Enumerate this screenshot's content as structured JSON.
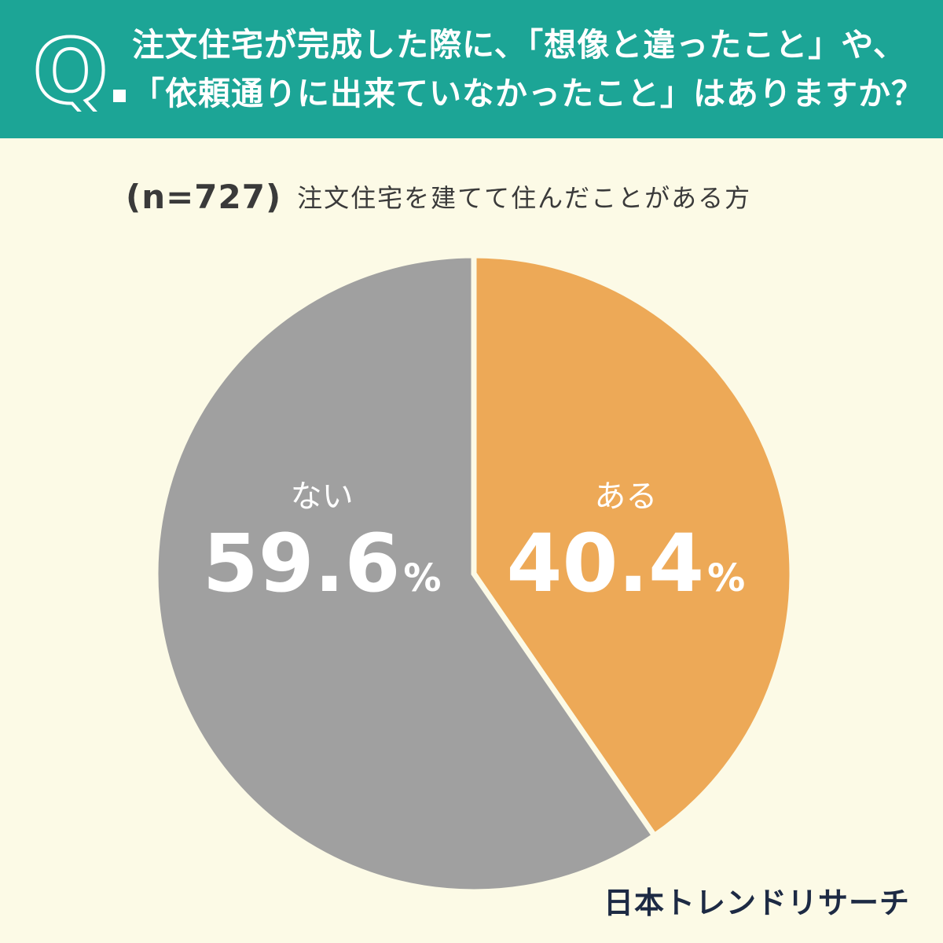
{
  "header": {
    "q_letter": "Q",
    "question_line1": "注文住宅が完成した際に、「想像と違ったこと」や、",
    "question_line2": "「依頼通りに出来ていなかったこと」はありますか？",
    "background_color": "#1ca596"
  },
  "sample": {
    "n_label": "(n=727)",
    "description": "注文住宅を建てて住んだことがある方"
  },
  "chart_data": {
    "type": "pie",
    "start_angle": "12 o'clock",
    "direction": "clockwise",
    "slices": [
      {
        "label": "ある",
        "value": 40.4,
        "value_text": "40.4",
        "unit": "%",
        "color": "#eda957"
      },
      {
        "label": "ない",
        "value": 59.6,
        "value_text": "59.6",
        "unit": "%",
        "color": "#a0a0a0"
      }
    ],
    "separator_color": "#fcfae6",
    "label_color": "#ffffff"
  },
  "brand": {
    "name": "日本トレンドリサーチ"
  }
}
